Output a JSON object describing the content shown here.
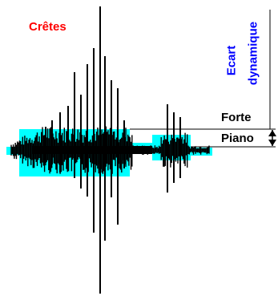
{
  "labels": {
    "crests": "Crêtes",
    "dynamic_range_line1": "Ecart",
    "dynamic_range_line2": "dynamique",
    "forte": "Forte",
    "piano": "Piano"
  },
  "colors": {
    "crests": "#ff0000",
    "dynamic_range": "#0000ff",
    "envelope": "#00ffff",
    "waveform": "#000000",
    "text": "#000000"
  }
}
